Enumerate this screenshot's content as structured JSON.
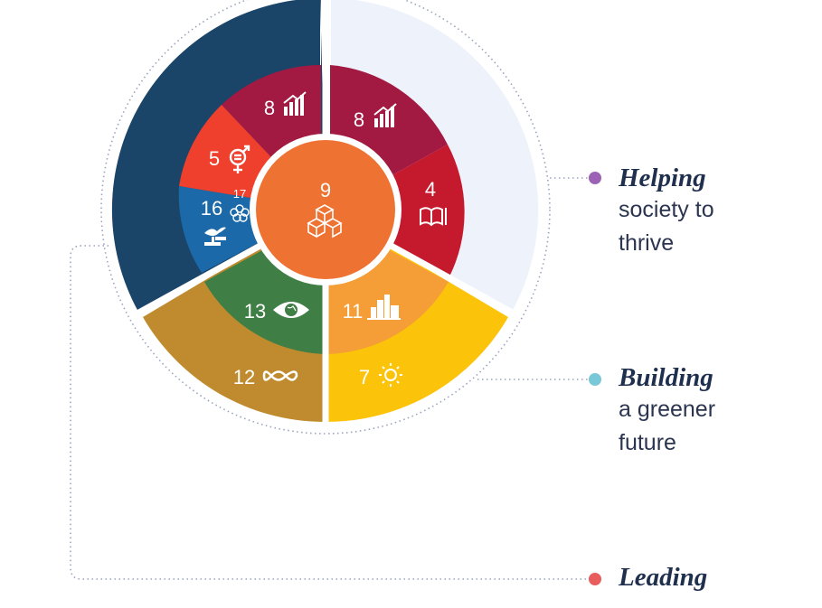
{
  "colors": {
    "navy": "#1a4568",
    "light_panel": "#eef2fa",
    "gold": "#bf8b2e",
    "yellow": "#fcc30b",
    "center": "#e8642c",
    "dot_purple": "#9b62b5",
    "dot_teal": "#78c8d8",
    "dot_red": "#e85d5d"
  },
  "center_goal": {
    "number": "9",
    "icon": "cubes-icon",
    "color": "#ee7232"
  },
  "inner_ring_left": [
    {
      "number": "8",
      "icon": "growth-chart-icon",
      "color": "#a21942"
    },
    {
      "number": "5",
      "icon": "gender-equality-icon",
      "color": "#ee402d"
    },
    {
      "number": "16",
      "sub_number": "17",
      "icon": "dove-gavel-icon",
      "sub_icon": "partnership-flower-icon",
      "color": "#1b69a8"
    }
  ],
  "inner_ring_right": [
    {
      "number": "8",
      "icon": "growth-chart-icon",
      "color": "#a21942"
    },
    {
      "number": "4",
      "icon": "book-pencil-icon",
      "color": "#c5192d"
    }
  ],
  "inner_ring_bottom": [
    {
      "number": "13",
      "icon": "eye-globe-icon",
      "color": "#3f7e44"
    },
    {
      "number": "11",
      "icon": "city-buildings-icon",
      "color": "#f59d36"
    }
  ],
  "outer_ring_bottom": [
    {
      "number": "12",
      "icon": "infinity-icon",
      "color": "#bf8b2e"
    },
    {
      "number": "7",
      "icon": "sun-power-icon",
      "color": "#fcc30b"
    }
  ],
  "legend": [
    {
      "title": "Helping",
      "description": "society to thrive",
      "dot_color": "#9b62b5"
    },
    {
      "title": "Building",
      "description": "a greener future",
      "dot_color": "#78c8d8"
    },
    {
      "title": "Leading",
      "description": "",
      "dot_color": "#e85d5d"
    }
  ]
}
